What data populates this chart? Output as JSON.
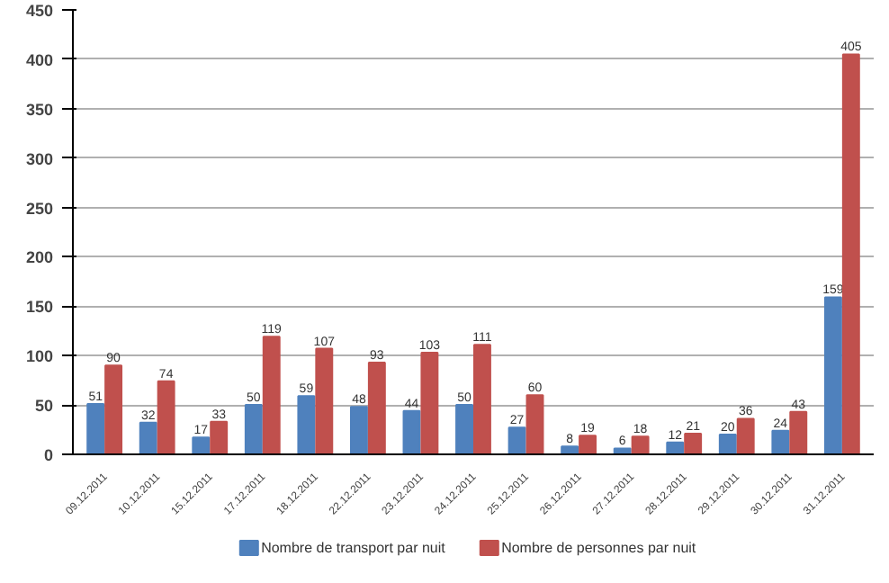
{
  "chart_data": {
    "type": "bar",
    "categories": [
      "09.12.2011",
      "10.12.2011",
      "15.12.2011",
      "17.12.2011",
      "18.12.2011",
      "22.12.2011",
      "23.12.2011",
      "24.12.2011",
      "25.12.2011",
      "26.12.2011",
      "27.12.2011",
      "28.12.2011",
      "29.12.2011",
      "30.12.2011",
      "31.12.2011"
    ],
    "series": [
      {
        "name": "Nombre de transport par nuit",
        "color": "#4f81bd",
        "values": [
          51,
          32,
          17,
          50,
          59,
          48,
          44,
          50,
          27,
          8,
          6,
          12,
          20,
          24,
          159
        ]
      },
      {
        "name": "Nombre de personnes par nuit",
        "color": "#c0504d",
        "values": [
          90,
          74,
          33,
          119,
          107,
          93,
          103,
          111,
          60,
          19,
          18,
          21,
          36,
          43,
          405
        ]
      }
    ],
    "ylim": [
      0,
      450
    ],
    "yticks": [
      0,
      50,
      100,
      150,
      200,
      250,
      300,
      350,
      400,
      450
    ],
    "grid": "y",
    "legend": "bottom",
    "data_labels": true
  }
}
